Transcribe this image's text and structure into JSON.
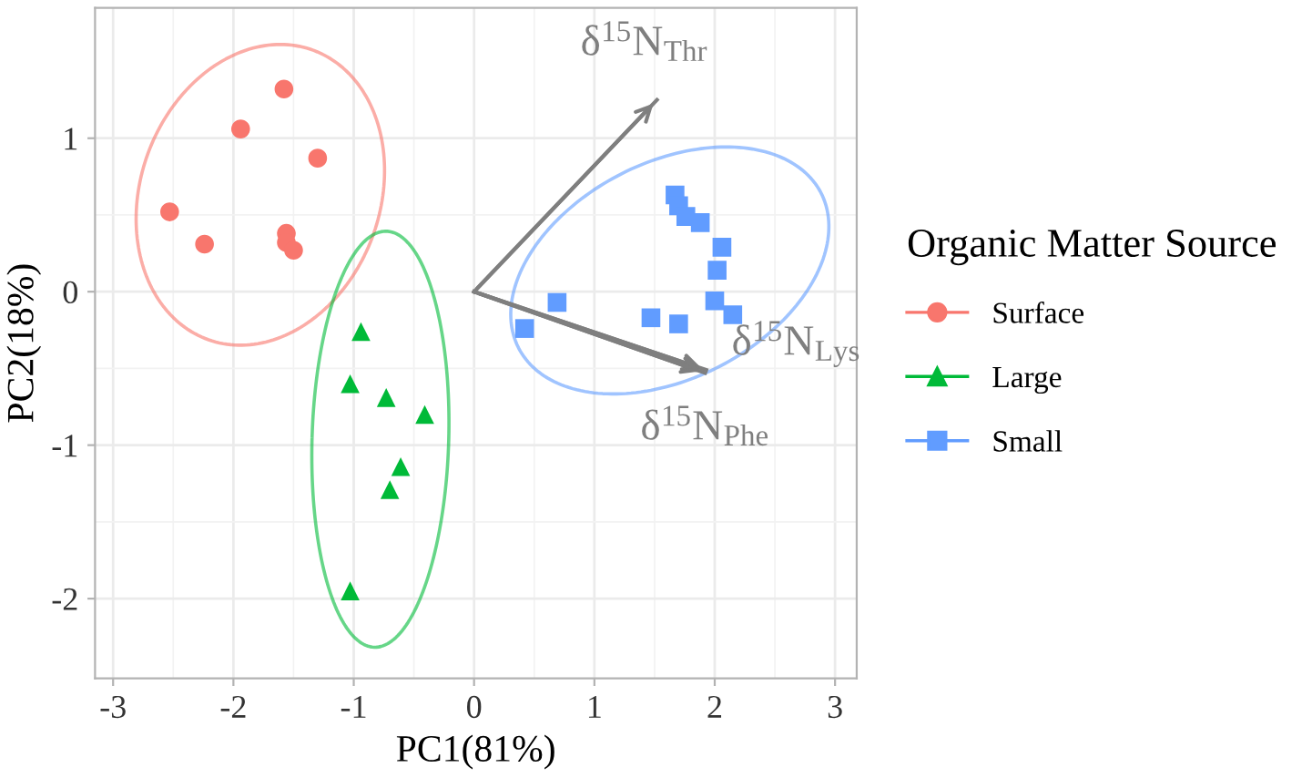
{
  "chart_data": {
    "type": "scatter",
    "xlabel": "PC1(81%)",
    "ylabel": "PC2(18%)",
    "legend_title": "Organic Matter Source",
    "legend": "right",
    "grid": true,
    "xlim": [
      -3.15,
      3.18
    ],
    "ylim": [
      -2.52,
      1.85
    ],
    "xticks": [
      -3,
      -2,
      -1,
      0,
      1,
      2,
      3
    ],
    "yticks": [
      -2,
      -1,
      0,
      1
    ],
    "series": [
      {
        "name": "Surface",
        "color": "#f8766d",
        "marker": "circle",
        "x": [
          -2.53,
          -2.24,
          -1.94,
          -1.58,
          -1.3,
          -1.56,
          -1.56,
          -1.5
        ],
        "values": [
          0.52,
          0.31,
          1.06,
          1.32,
          0.87,
          0.38,
          0.32,
          0.27
        ]
      },
      {
        "name": "Large",
        "color": "#00ba38",
        "marker": "triangle",
        "x": [
          -0.94,
          -1.03,
          -0.73,
          -0.41,
          -0.61,
          -0.7,
          -1.03
        ],
        "values": [
          -0.26,
          -0.6,
          -0.69,
          -0.8,
          -1.14,
          -1.29,
          -1.95
        ]
      },
      {
        "name": "Small",
        "color": "#619cff",
        "marker": "square",
        "x": [
          0.42,
          0.69,
          1.67,
          1.7,
          1.76,
          1.88,
          2.06,
          2.02,
          2.0,
          2.15,
          1.47,
          1.7
        ],
        "values": [
          -0.24,
          -0.07,
          0.63,
          0.56,
          0.49,
          0.45,
          0.29,
          0.14,
          -0.06,
          -0.15,
          -0.17,
          -0.21
        ]
      },
      {
        "name": "δ$^{15}$N$_{Thr}$",
        "type": "line",
        "color": "#7f7f7f",
        "x": [
          0,
          1.52
        ],
        "values": [
          0,
          1.25
        ]
      },
      {
        "name": "δ$^{15}$N$_{Lys}$",
        "type": "line",
        "color": "#7f7f7f",
        "x": [
          0,
          1.93
        ],
        "values": [
          0,
          -0.51
        ]
      },
      {
        "name": "δ$^{15}$N$_{Phe}$",
        "type": "line",
        "color": "#7f7f7f",
        "x": [
          0,
          1.92
        ],
        "values": [
          0,
          -0.53
        ]
      }
    ]
  }
}
